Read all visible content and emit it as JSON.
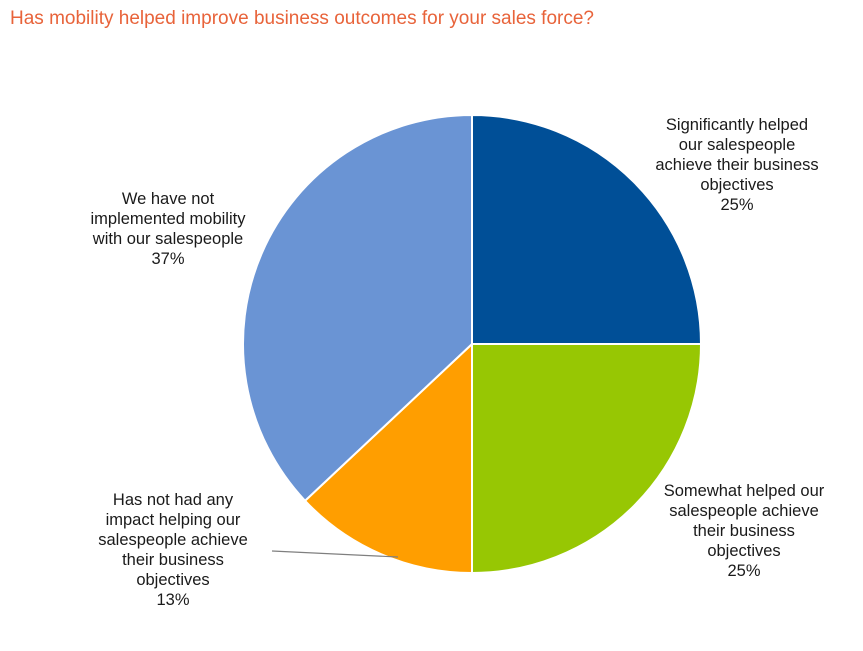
{
  "chart_data": {
    "type": "pie",
    "title": "Has mobility helped improve business outcomes for your sales force?",
    "slices": [
      {
        "label": [
          "Significantly helped",
          "our salespeople",
          "achieve their business",
          "objectives"
        ],
        "value": 25,
        "value_label": "25%",
        "color": "#004f97"
      },
      {
        "label": [
          "Somewhat helped our",
          "salespeople achieve",
          "their business",
          "objectives"
        ],
        "value": 25,
        "value_label": "25%",
        "color": "#97c703"
      },
      {
        "label": [
          "Has not had any",
          "impact helping our",
          "salespeople achieve",
          "their business",
          "objectives"
        ],
        "value": 13,
        "value_label": "13%",
        "color": "#ff9e00"
      },
      {
        "label": [
          "We have not",
          "implemented mobility",
          "with our salespeople"
        ],
        "value": 37,
        "value_label": "37%",
        "color": "#6a94d4"
      }
    ],
    "start_angle": "12 o'clock",
    "direction": "clockwise",
    "legend": "none"
  }
}
